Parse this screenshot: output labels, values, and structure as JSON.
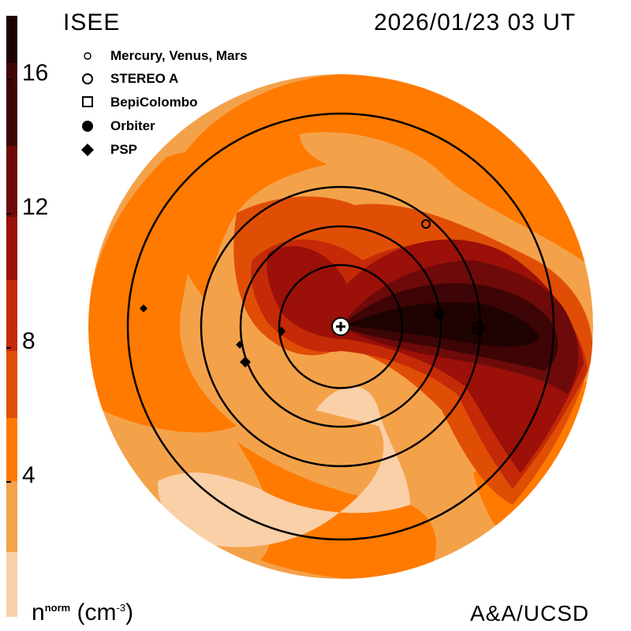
{
  "header": {
    "org": "ISEE",
    "timestamp": "2026/01/23 03 UT"
  },
  "footer": {
    "credit": "A&A/UCSD"
  },
  "colorbar": {
    "label_main": "n",
    "label_sup": "norm",
    "label_unit": "(cm",
    "label_unit_sup": "-3",
    "label_close": ")",
    "ticks": [
      "16",
      "12",
      "8",
      "4"
    ],
    "colors": [
      "#1f0202",
      "#3d0505",
      "#6e0a0a",
      "#9b1008",
      "#c42a08",
      "#e04e06",
      "#ff7a00",
      "#f4a24a",
      "#fad0a8"
    ]
  },
  "legend": {
    "items": [
      {
        "label": "Mercury, Venus, Mars",
        "icon": "small-circle-icon"
      },
      {
        "label": "STEREO A",
        "icon": "circle-icon"
      },
      {
        "label": "BepiColombo",
        "icon": "square-icon"
      },
      {
        "label": "Orbiter",
        "icon": "filled-circle-icon"
      },
      {
        "label": "PSP",
        "icon": "diamond-icon"
      }
    ]
  }
}
